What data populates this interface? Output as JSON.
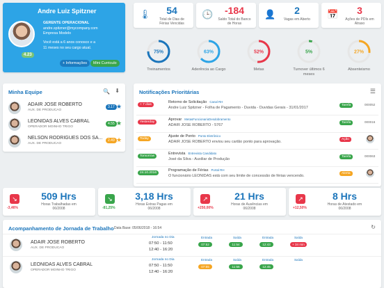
{
  "colors": {
    "blue": "#1b75bb",
    "green": "#39a54b",
    "red": "#e8374a",
    "orange": "#f5a623",
    "yellow": "#f6c244"
  },
  "profile": {
    "name": "Andre Luiz Spitzner",
    "role": "GERENTE OPERACIONAL",
    "email": "andre.spitzner@mycompany.com",
    "company": "Empresa Modelo",
    "msg1": "Você está a 6 anos conosco e a",
    "msg2": "11 meses no seu cargo atual.",
    "level": "4.23",
    "info_button": "+ Informações",
    "cv_button": "Mini Curriculo"
  },
  "stats": [
    {
      "value": "54",
      "label1": "Total de Dias de",
      "label2": "Férias Vencidas",
      "color": "#1b75bb",
      "icon": "thermometer-icon"
    },
    {
      "value": "-184",
      "label1": "Saldo Total do Banco",
      "label2": "de Horas",
      "color": "#e8374a",
      "icon": "clock-icon"
    },
    {
      "value": "2",
      "label1": "Vagas em Aberto",
      "label2": "",
      "color": "#1b75bb",
      "icon": "add-user-icon"
    },
    {
      "value": "3",
      "label1": "Ações de PDIs em",
      "label2": "Atraso",
      "color": "#e8374a",
      "icon": "calendar-x-icon"
    }
  ],
  "gauges": [
    {
      "pct": 75,
      "label": "75%",
      "name": "Treinamentos",
      "name2": "",
      "color": "#1b75bb"
    },
    {
      "pct": 63,
      "label": "63%",
      "name": "Aderência ao Cargo",
      "name2": "",
      "color": "#2da4e6"
    },
    {
      "pct": 52,
      "label": "52%",
      "name": "Metas",
      "name2": "",
      "color": "#e8374a"
    },
    {
      "pct": 5,
      "label": "5%",
      "name": "Turnover últimos 6",
      "name2": "meses",
      "color": "#39a54b"
    },
    {
      "pct": 27,
      "label": "27%",
      "name": "Absenteismo",
      "name2": "",
      "color": "#f5a623"
    }
  ],
  "team": {
    "title": "Minha Equipe",
    "members": [
      {
        "name": "ADAIR JOSE ROBERTO",
        "role": "AUX. DE PRODUCAO",
        "score": "3.17",
        "color": "#1b75bb"
      },
      {
        "name": "LEONIDAS ALVES CABRAL",
        "role": "OPERADOR MOINHO TRIGO",
        "score": "4.55",
        "color": "#39a54b"
      },
      {
        "name": "NELSON RODRIGUES DOS SA...",
        "role": "AUX. DE PRODUCAO",
        "score": "2.49",
        "color": "#f5a623"
      }
    ]
  },
  "notifications": {
    "title": "Notificações Prioritárias",
    "items": [
      {
        "tag": "+ 7 dias",
        "tag_color": "#e8374a",
        "title": "Retorno de Solicitação",
        "chip": "Canal RH",
        "text": "Andre Luiz Spitzner - Folha de Pagamento - Duvida - Duvidas Gerais - 31/01/2017",
        "status": "Tarefa",
        "status_color": "#39a54b",
        "id": "000052"
      },
      {
        "tag": "Yesterday",
        "tag_color": "#e8374a",
        "title": "Aprovar",
        "chip": "MetasFuncionarioDesdobramento",
        "text": "ADAIR JOSE ROBERTO - 5767",
        "status": "Tarefa",
        "status_color": "#39a54b",
        "id": "000016"
      },
      {
        "tag": "Today",
        "tag_color": "#f5a623",
        "title": "Ajuste de Ponto",
        "chip": "Ponto Eletrônico",
        "text": "ADAIR JOSE ROBERTO enviou seu cartão ponto para aprovação.",
        "status": "Ação",
        "status_color": "#e8374a",
        "id": ""
      },
      {
        "tag": "Tomorrow",
        "tag_color": "#39a54b",
        "title": "Entrevista",
        "chip": "Entrevista Candidato",
        "text": "José da Silva - Auxiliar de Produção",
        "status": "Tarefa",
        "status_color": "#39a54b",
        "id": "000063"
      },
      {
        "tag": "24.10.2016",
        "tag_color": "#39a54b",
        "title": "Programação de Férias",
        "chip": "Portal RH",
        "text": "O funcionário LEONIDAS está com seu limite de concessão de férias vencendo.",
        "status": "Alerta",
        "status_color": "#f5a623",
        "id": ""
      }
    ]
  },
  "hours": [
    {
      "value": "509 Hrs",
      "pct": "-3,46%",
      "label1": "Horas Trabalhadas em",
      "label2": "06/2008",
      "color": "#e8374a",
      "icon": "arrow-down-icon"
    },
    {
      "value": "3,18 Hrs",
      "pct": "-81,25%",
      "label1": "Horas Extras Pagas em",
      "label2": "06/2008",
      "color": "#39a54b",
      "icon": "arrow-down-icon"
    },
    {
      "value": "21 Hrs",
      "pct": "+250,00%",
      "label1": "Horas de Ausências em",
      "label2": "06/2008",
      "color": "#e8374a",
      "icon": "arrow-up-icon"
    },
    {
      "value": "8 Hrs",
      "pct": "+12,50%",
      "label1": "Horas de Atestado em",
      "label2": "06/2008",
      "color": "#e8374a",
      "icon": "arrow-up-icon"
    }
  ],
  "journey": {
    "title": "Acompanhamento de Jornada de Trabalho",
    "date": "Data Base: 05/06/2018 - 16:54",
    "jornada_header": "Jornada no Dia",
    "cols": [
      "Entrada",
      "Saída",
      "Entrada",
      "Saída"
    ],
    "rows": [
      {
        "name": "ADAIR JOSE ROBERTO",
        "role": "AUX. DE PRODUCAO",
        "j1": "07:50 - 11:50",
        "j2": "12:40 - 16:20",
        "marks": [
          {
            "v": "07:52",
            "c": "#39a54b"
          },
          {
            "v": "11:54",
            "c": "#39a54b"
          },
          {
            "v": "12:43",
            "c": "#39a54b"
          },
          {
            "v": "+ 34 min",
            "c": "#e8374a"
          }
        ]
      },
      {
        "name": "LEONIDAS ALVES CABRAL",
        "role": "OPERADOR MOINHO TRIGO",
        "j1": "07:50 - 11:50",
        "j2": "12:40 - 16:20",
        "marks": [
          {
            "v": "07:55",
            "c": "#f5a623"
          },
          {
            "v": "11:56",
            "c": "#39a54b"
          },
          {
            "v": "12:45",
            "c": "#39a54b"
          },
          {
            "v": "",
            "c": "#ffffff"
          }
        ]
      }
    ]
  }
}
